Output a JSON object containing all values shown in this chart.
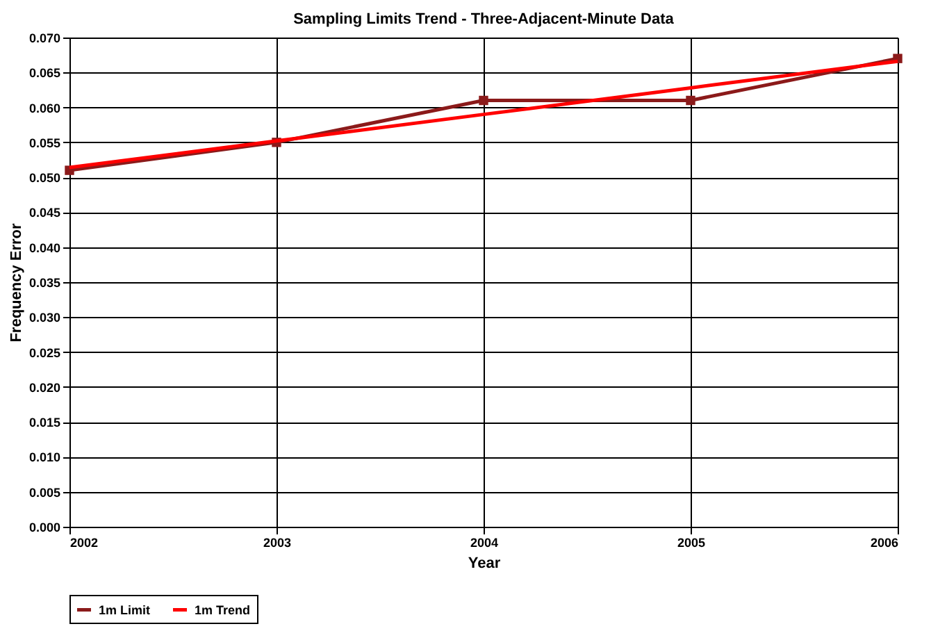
{
  "chart_data": {
    "type": "line",
    "title": "Sampling Limits Trend - Three-Adjacent-Minute Data",
    "xlabel": "Year",
    "ylabel": "Frequency Error",
    "x": [
      2002,
      2003,
      2004,
      2005,
      2006
    ],
    "series": [
      {
        "name": "1m Limit",
        "color": "#8b1a1a",
        "marker": "square",
        "values": [
          0.051,
          0.055,
          0.061,
          0.061,
          0.067
        ]
      },
      {
        "name": "1m Trend",
        "color": "#ff0000",
        "marker": "none",
        "values": [
          0.0514,
          0.0552,
          0.059,
          0.0628,
          0.0666
        ]
      }
    ],
    "xlim": [
      2002,
      2006
    ],
    "xticks": [
      2002,
      2003,
      2004,
      2005,
      2006
    ],
    "ylim": [
      0,
      0.07
    ],
    "yticks": [
      {
        "value": 0,
        "label": "0.000"
      },
      {
        "value": 0.005,
        "label": "0.005"
      },
      {
        "value": 0.01,
        "label": "0.010"
      },
      {
        "value": 0.015,
        "label": "0.015"
      },
      {
        "value": 0.02,
        "label": "0.020"
      },
      {
        "value": 0.025,
        "label": "0.025"
      },
      {
        "value": 0.03,
        "label": "0.030"
      },
      {
        "value": 0.035,
        "label": "0.035"
      },
      {
        "value": 0.04,
        "label": "0.040"
      },
      {
        "value": 0.045,
        "label": "0.045"
      },
      {
        "value": 0.05,
        "label": "0.050"
      },
      {
        "value": 0.055,
        "label": "0.055"
      },
      {
        "value": 0.06,
        "label": "0.060"
      },
      {
        "value": 0.065,
        "label": "0.065"
      },
      {
        "value": 0.07,
        "label": "0.070"
      }
    ],
    "grid": true,
    "legend": "bottom",
    "line_style": "solid"
  }
}
